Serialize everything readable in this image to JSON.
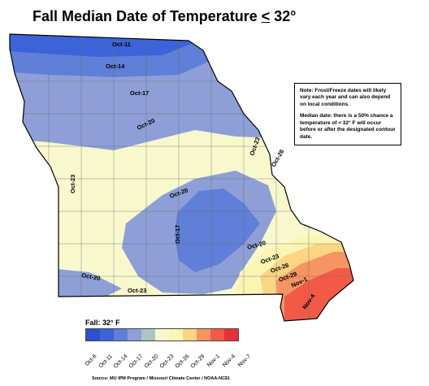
{
  "title": {
    "prefix": "Fall Median Date of Temperature ",
    "symbol": "<",
    "suffix": " 32°"
  },
  "note": {
    "line1": "Note: Frost/Freeze dates will likely vary each year and can also depend on local conditions.",
    "line2": "Median date: there is a 50% chance a temperature of < 32° F will occur before or after the designated contour date."
  },
  "legend": {
    "title": "Fall: 32° F",
    "items": [
      {
        "label": "Oct-8",
        "color": "#2f4fcf"
      },
      {
        "label": "Oct-11",
        "color": "#3d63d8"
      },
      {
        "label": "Oct-14",
        "color": "#5f7fd8"
      },
      {
        "label": "Oct-17",
        "color": "#8d9fd6"
      },
      {
        "label": "Oct-20",
        "color": "#a9c6c3"
      },
      {
        "label": "Oct-23",
        "color": "#f8f8cd"
      },
      {
        "label": "Oct-26",
        "color": "#fbf5b4"
      },
      {
        "label": "Oct-29",
        "color": "#fbd584"
      },
      {
        "label": "Nov-1",
        "color": "#f69463"
      },
      {
        "label": "Nov-4",
        "color": "#f25a48"
      },
      {
        "label": "Nov-7",
        "color": "#e8323a"
      }
    ]
  },
  "contour_labels": [
    "Oct-11",
    "Oct-14",
    "Oct-17",
    "Oct-20",
    "Oct-23",
    "Oct-26",
    "Oct-20",
    "Oct-17",
    "Oct-20",
    "Oct-23",
    "Oct-26",
    "Oct-29",
    "Nov-1",
    "Nov-4",
    "Oct-23",
    "Oct-20",
    "Oct-23"
  ],
  "source": "Source: MU IPM Program / Missouri Climate Center / NOAA-NCEI."
}
